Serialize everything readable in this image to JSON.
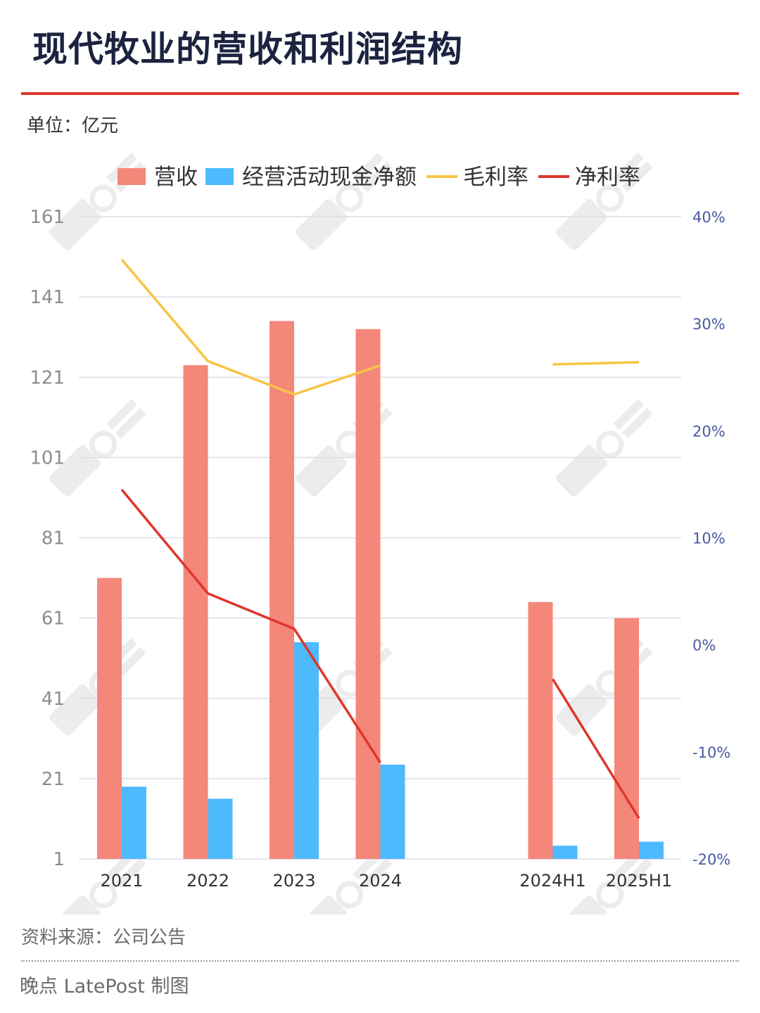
{
  "header": {
    "title": "现代牧业的营收和利润结构",
    "unit": "单位：亿元"
  },
  "footer": {
    "source": "资料来源：公司公告",
    "credit": "晚点 LatePost 制图"
  },
  "colors": {
    "revenue": "#f4877a",
    "cashflow": "#4dbafe",
    "gross_margin": "#f8c444",
    "net_margin": "#e0362a",
    "grid": "#dcdcec",
    "left_tick": "#8c8c8c",
    "right_tick": "#4a5aa0"
  },
  "chart_data": {
    "type": "bar",
    "categories": [
      "2021",
      "2022",
      "2023",
      "2024",
      "",
      "2024H1",
      "2025H1"
    ],
    "legend": [
      "营收",
      "经营活动现金净额",
      "毛利率",
      "净利率"
    ],
    "legend_position": "top",
    "grid": true,
    "y_left": {
      "min": 1,
      "max": 161,
      "ticks": [
        "161",
        "141",
        "121",
        "101",
        "81",
        "61",
        "41",
        "21",
        "1"
      ]
    },
    "y_right": {
      "min": -20,
      "max": 40,
      "ticks": [
        "40%",
        "30%",
        "20%",
        "10%",
        "0%",
        "-10%",
        "-20%"
      ]
    },
    "series": [
      {
        "name": "营收",
        "type": "bar",
        "axis": "left",
        "values": [
          71,
          124,
          135,
          133,
          null,
          65,
          61
        ]
      },
      {
        "name": "经营活动现金净额",
        "type": "bar",
        "axis": "left",
        "values": [
          19,
          16,
          55,
          24.5,
          null,
          4.3,
          5.3
        ]
      },
      {
        "name": "毛利率",
        "type": "line",
        "axis": "right",
        "values": [
          36,
          26.5,
          23.4,
          26.1,
          null,
          26.2,
          26.4
        ]
      },
      {
        "name": "净利率",
        "type": "line",
        "axis": "right",
        "values": [
          14.5,
          4.8,
          1.5,
          -11,
          null,
          -3.2,
          -16.2
        ]
      }
    ]
  }
}
